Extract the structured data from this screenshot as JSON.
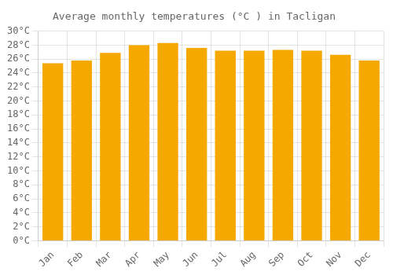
{
  "chart_data": {
    "type": "bar",
    "title": "Average monthly temperatures (°C ) in Tacligan",
    "categories": [
      "Jan",
      "Feb",
      "Mar",
      "Apr",
      "May",
      "Jun",
      "Jul",
      "Aug",
      "Sep",
      "Oct",
      "Nov",
      "Dec"
    ],
    "values": [
      25.4,
      25.8,
      26.9,
      28.0,
      28.3,
      27.6,
      27.2,
      27.2,
      27.3,
      27.2,
      26.6,
      25.8
    ],
    "color": "#F5A800",
    "ylim": [
      0,
      30
    ],
    "yticks": [
      {
        "value": 0,
        "label": "0°C"
      },
      {
        "value": 2,
        "label": "2°C"
      },
      {
        "value": 4,
        "label": "4°C"
      },
      {
        "value": 6,
        "label": "6°C"
      },
      {
        "value": 8,
        "label": "8°C"
      },
      {
        "value": 10,
        "label": "10°C"
      },
      {
        "value": 12,
        "label": "12°C"
      },
      {
        "value": 14,
        "label": "14°C"
      },
      {
        "value": 16,
        "label": "16°C"
      },
      {
        "value": 18,
        "label": "18°C"
      },
      {
        "value": 20,
        "label": "20°C"
      },
      {
        "value": 22,
        "label": "22°C"
      },
      {
        "value": 24,
        "label": "24°C"
      },
      {
        "value": 26,
        "label": "26°C"
      },
      {
        "value": 28,
        "label": "28°C"
      },
      {
        "value": 30,
        "label": "30°C"
      }
    ],
    "grid": true
  }
}
